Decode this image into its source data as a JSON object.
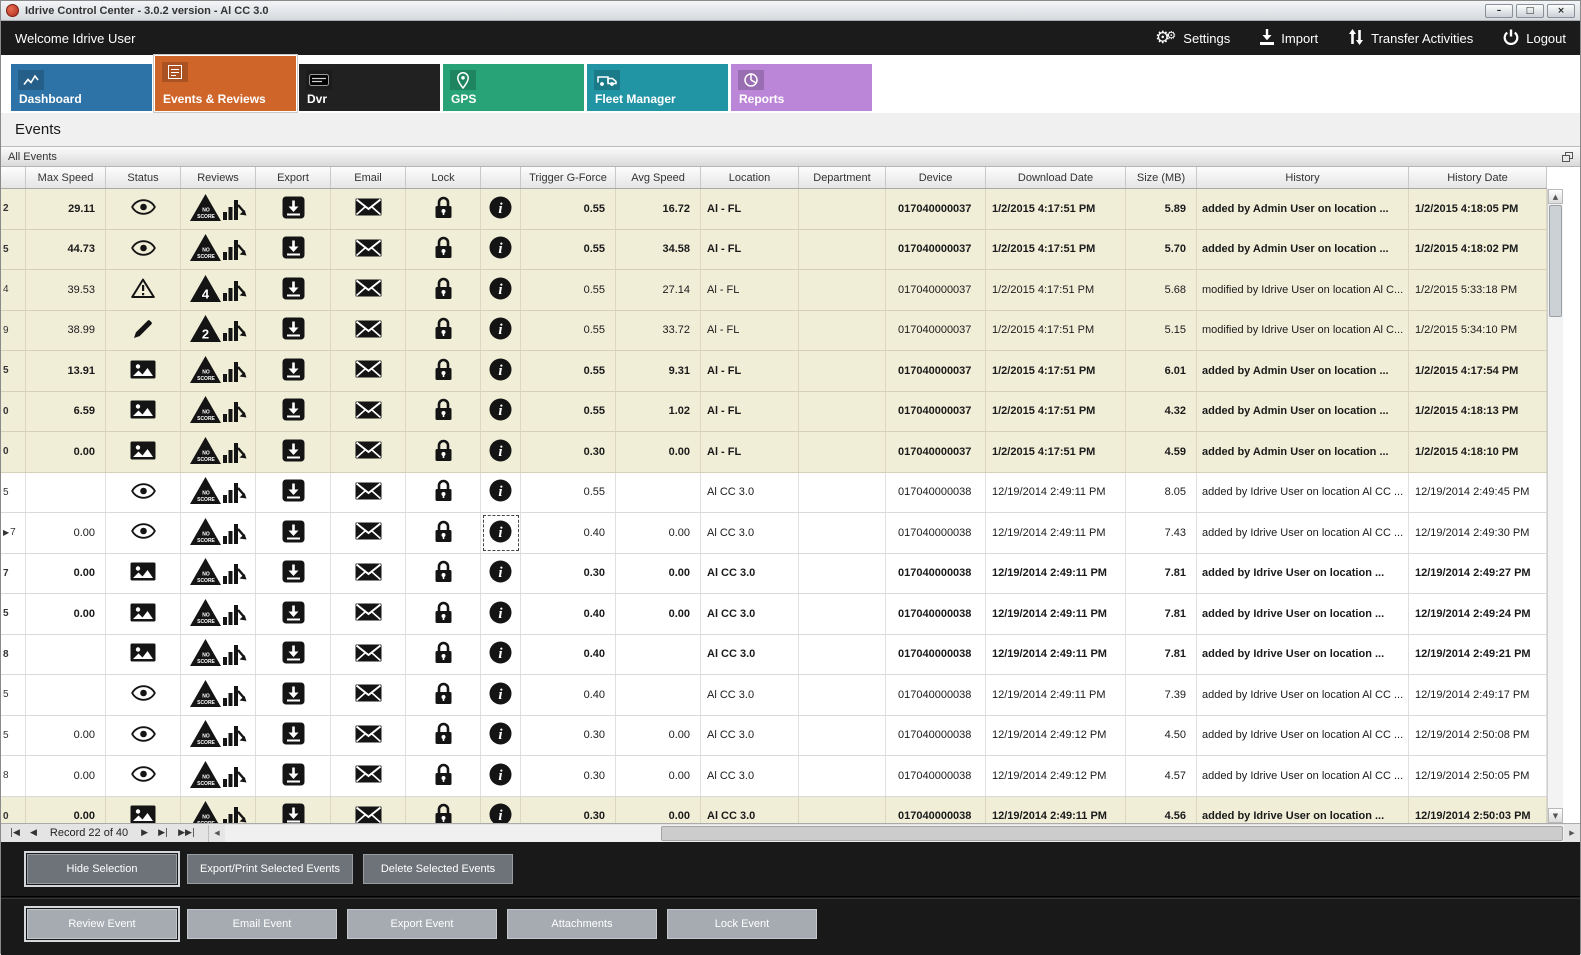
{
  "window": {
    "title": "Idrive Control Center - 3.0.2 version - Al CC 3.0",
    "controls": [
      {
        "glyph": "–"
      },
      {
        "glyph": "□"
      },
      {
        "glyph": "×"
      }
    ]
  },
  "topbar": {
    "welcome": "Welcome Idrive User",
    "actions": [
      {
        "label": "Settings",
        "icon": "gear-icon"
      },
      {
        "label": "Import",
        "icon": "import-icon"
      },
      {
        "label": "Transfer Activities",
        "icon": "transfer-icon"
      },
      {
        "label": "Logout",
        "icon": "power-icon"
      }
    ]
  },
  "tabs": [
    {
      "label": "Dashboard",
      "color": "#2e73a7",
      "selected": false,
      "icon": "line-chart-icon"
    },
    {
      "label": "Events & Reviews",
      "color": "#d0652a",
      "selected": true,
      "icon": "events-list-icon"
    },
    {
      "label": "Dvr",
      "color": "#212121",
      "selected": false,
      "icon": "dvr-icon"
    },
    {
      "label": "GPS",
      "color": "#27a377",
      "selected": false,
      "icon": "map-pin-icon"
    },
    {
      "label": "Fleet Manager",
      "color": "#2295a5",
      "selected": false,
      "icon": "vehicle-icon"
    },
    {
      "label": "Reports",
      "color": "#bb86d8",
      "selected": false,
      "icon": "pie-chart-icon"
    }
  ],
  "section_title": "Events",
  "panel": {
    "title": "All Events"
  },
  "grid": {
    "columns": [
      "",
      "Max Speed",
      "Status",
      "Reviews",
      "Export",
      "Email",
      "Lock",
      "",
      "Trigger G-Force",
      "Avg Speed",
      "Location",
      "Department",
      "Device",
      "Download Date",
      "Size (MB)",
      "History",
      "History Date"
    ],
    "rows": [
      {
        "edge": "2",
        "max_speed": "29.11",
        "status_icon": "eye-icon",
        "review_badge": "NO SCORE",
        "trigger_g_force": "0.55",
        "avg_speed": "16.72",
        "location": "Al - FL",
        "department": "",
        "device": "017040000037",
        "download_date": "1/2/2015 4:17:51 PM",
        "size_mb": "5.89",
        "history": "added by Admin User on location ...",
        "history_date": "1/2/2015 4:18:05 PM",
        "bold": true,
        "shade": "beige",
        "current": false
      },
      {
        "edge": "5",
        "max_speed": "44.73",
        "status_icon": "eye-icon",
        "review_badge": "NO SCORE",
        "trigger_g_force": "0.55",
        "avg_speed": "34.58",
        "location": "Al - FL",
        "department": "",
        "device": "017040000037",
        "download_date": "1/2/2015 4:17:51 PM",
        "size_mb": "5.70",
        "history": "added by Admin User on location ...",
        "history_date": "1/2/2015 4:18:02 PM",
        "bold": true,
        "shade": "beige",
        "current": false
      },
      {
        "edge": "4",
        "max_speed": "39.53",
        "status_icon": "warning-icon",
        "review_badge": "4",
        "trigger_g_force": "0.55",
        "avg_speed": "27.14",
        "location": "Al - FL",
        "department": "",
        "device": "017040000037",
        "download_date": "1/2/2015 4:17:51 PM",
        "size_mb": "5.68",
        "history": "modified by Idrive User on location Al C...",
        "history_date": "1/2/2015 5:33:18 PM",
        "bold": false,
        "shade": "beige",
        "current": false
      },
      {
        "edge": "9",
        "max_speed": "38.99",
        "status_icon": "pencil-icon",
        "review_badge": "2",
        "trigger_g_force": "0.55",
        "avg_speed": "33.72",
        "location": "Al - FL",
        "department": "",
        "device": "017040000037",
        "download_date": "1/2/2015 4:17:51 PM",
        "size_mb": "5.15",
        "history": "modified by Idrive User on location Al C...",
        "history_date": "1/2/2015 5:34:10 PM",
        "bold": false,
        "shade": "beige",
        "current": false
      },
      {
        "edge": "5",
        "max_speed": "13.91",
        "status_icon": "picture-icon",
        "review_badge": "NO SCORE",
        "trigger_g_force": "0.55",
        "avg_speed": "9.31",
        "location": "Al - FL",
        "department": "",
        "device": "017040000037",
        "download_date": "1/2/2015 4:17:51 PM",
        "size_mb": "6.01",
        "history": "added by Admin User on location ...",
        "history_date": "1/2/2015 4:17:54 PM",
        "bold": true,
        "shade": "beige",
        "current": false
      },
      {
        "edge": "0",
        "max_speed": "6.59",
        "status_icon": "picture-icon",
        "review_badge": "NO SCORE",
        "trigger_g_force": "0.55",
        "avg_speed": "1.02",
        "location": "Al - FL",
        "department": "",
        "device": "017040000037",
        "download_date": "1/2/2015 4:17:51 PM",
        "size_mb": "4.32",
        "history": "added by Admin User on location ...",
        "history_date": "1/2/2015 4:18:13 PM",
        "bold": true,
        "shade": "beige",
        "current": false
      },
      {
        "edge": "0",
        "max_speed": "0.00",
        "status_icon": "picture-icon",
        "review_badge": "NO SCORE",
        "trigger_g_force": "0.30",
        "avg_speed": "0.00",
        "location": "Al - FL",
        "department": "",
        "device": "017040000037",
        "download_date": "1/2/2015 4:17:51 PM",
        "size_mb": "4.59",
        "history": "added by Admin User on location ...",
        "history_date": "1/2/2015 4:18:10 PM",
        "bold": true,
        "shade": "beige",
        "current": false
      },
      {
        "edge": "5",
        "max_speed": "",
        "status_icon": "eye-icon",
        "review_badge": "NO SCORE",
        "trigger_g_force": "0.55",
        "avg_speed": "",
        "location": "Al CC 3.0",
        "department": "",
        "device": "017040000038",
        "download_date": "12/19/2014 2:49:11 PM",
        "size_mb": "8.05",
        "history": "added by Idrive User on location Al CC ...",
        "history_date": "12/19/2014 2:49:45 PM",
        "bold": false,
        "shade": "white",
        "current": false
      },
      {
        "edge": "7",
        "max_speed": "0.00",
        "status_icon": "eye-icon",
        "review_badge": "NO SCORE",
        "trigger_g_force": "0.40",
        "avg_speed": "0.00",
        "location": "Al CC 3.0",
        "department": "",
        "device": "017040000038",
        "download_date": "12/19/2014 2:49:11 PM",
        "size_mb": "7.43",
        "history": "added by Idrive User on location Al CC ...",
        "history_date": "12/19/2014 2:49:30 PM",
        "bold": false,
        "shade": "white",
        "current": true
      },
      {
        "edge": "7",
        "max_speed": "0.00",
        "status_icon": "picture-icon",
        "review_badge": "NO SCORE",
        "trigger_g_force": "0.30",
        "avg_speed": "0.00",
        "location": "Al CC 3.0",
        "department": "",
        "device": "017040000038",
        "download_date": "12/19/2014 2:49:11 PM",
        "size_mb": "7.81",
        "history": "added by Idrive User on location ...",
        "history_date": "12/19/2014 2:49:27 PM",
        "bold": true,
        "shade": "white",
        "current": false
      },
      {
        "edge": "5",
        "max_speed": "0.00",
        "status_icon": "picture-icon",
        "review_badge": "NO SCORE",
        "trigger_g_force": "0.40",
        "avg_speed": "0.00",
        "location": "Al CC 3.0",
        "department": "",
        "device": "017040000038",
        "download_date": "12/19/2014 2:49:11 PM",
        "size_mb": "7.81",
        "history": "added by Idrive User on location ...",
        "history_date": "12/19/2014 2:49:24 PM",
        "bold": true,
        "shade": "white",
        "current": false
      },
      {
        "edge": "8",
        "max_speed": "",
        "status_icon": "picture-icon",
        "review_badge": "NO SCORE",
        "trigger_g_force": "0.40",
        "avg_speed": "",
        "location": "Al CC 3.0",
        "department": "",
        "device": "017040000038",
        "download_date": "12/19/2014 2:49:11 PM",
        "size_mb": "7.81",
        "history": "added by Idrive User on location ...",
        "history_date": "12/19/2014 2:49:21 PM",
        "bold": true,
        "shade": "white",
        "current": false
      },
      {
        "edge": "5",
        "max_speed": "",
        "status_icon": "eye-icon",
        "review_badge": "NO SCORE",
        "trigger_g_force": "0.40",
        "avg_speed": "",
        "location": "Al CC 3.0",
        "department": "",
        "device": "017040000038",
        "download_date": "12/19/2014 2:49:11 PM",
        "size_mb": "7.39",
        "history": "added by Idrive User on location Al CC ...",
        "history_date": "12/19/2014 2:49:17 PM",
        "bold": false,
        "shade": "white",
        "current": false
      },
      {
        "edge": "5",
        "max_speed": "0.00",
        "status_icon": "eye-icon",
        "review_badge": "NO SCORE",
        "trigger_g_force": "0.30",
        "avg_speed": "0.00",
        "location": "Al CC 3.0",
        "department": "",
        "device": "017040000038",
        "download_date": "12/19/2014 2:49:12 PM",
        "size_mb": "4.50",
        "history": "added by Idrive User on location Al CC ...",
        "history_date": "12/19/2014 2:50:08 PM",
        "bold": false,
        "shade": "white",
        "current": false
      },
      {
        "edge": "8",
        "max_speed": "0.00",
        "status_icon": "eye-icon",
        "review_badge": "NO SCORE",
        "trigger_g_force": "0.30",
        "avg_speed": "0.00",
        "location": "Al CC 3.0",
        "department": "",
        "device": "017040000038",
        "download_date": "12/19/2014 2:49:12 PM",
        "size_mb": "4.57",
        "history": "added by Idrive User on location Al CC ...",
        "history_date": "12/19/2014 2:50:05 PM",
        "bold": false,
        "shade": "white",
        "current": false
      },
      {
        "edge": "0",
        "max_speed": "0.00",
        "status_icon": "picture-icon",
        "review_badge": "NO SCORE",
        "trigger_g_force": "0.30",
        "avg_speed": "0.00",
        "location": "Al CC 3.0",
        "department": "",
        "device": "017040000038",
        "download_date": "12/19/2014 2:49:11 PM",
        "size_mb": "4.56",
        "history": "added by Idrive User on location ...",
        "history_date": "12/19/2014 2:50:03 PM",
        "bold": true,
        "shade": "beige",
        "current": false
      }
    ]
  },
  "pager": {
    "record_text": "Record 22 of 40"
  },
  "footer": {
    "selection_buttons": [
      {
        "label": "Hide Selection",
        "focused": true
      },
      {
        "label": "Export/Print Selected Events",
        "focused": false
      },
      {
        "label": "Delete Selected  Events",
        "focused": false
      }
    ],
    "event_buttons": [
      {
        "label": "Review Event",
        "focused": true
      },
      {
        "label": "Email Event",
        "focused": false
      },
      {
        "label": "Export Event",
        "focused": false
      },
      {
        "label": "Attachments",
        "focused": false
      },
      {
        "label": "Lock Event",
        "focused": false
      }
    ]
  }
}
